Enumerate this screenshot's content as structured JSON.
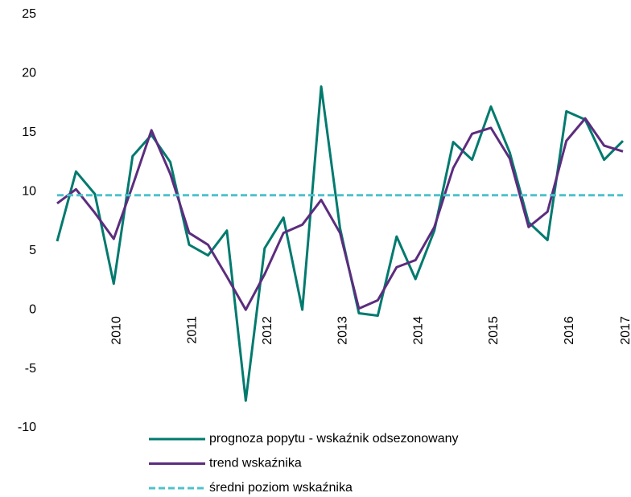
{
  "chart_data": {
    "type": "line",
    "categories": [
      null,
      null,
      null,
      "2010",
      null,
      null,
      null,
      "2011",
      null,
      null,
      null,
      "2012",
      null,
      null,
      null,
      "2013",
      null,
      null,
      null,
      "2014",
      null,
      null,
      null,
      "2015",
      null,
      null,
      null,
      "2016",
      null,
      null,
      "2017"
    ],
    "series": [
      {
        "name": "prognoza popytu - wskaźnik odsezonowany",
        "color": "#007a6e",
        "dash": false,
        "values": [
          5.8,
          11.7,
          9.8,
          2.2,
          13.0,
          14.8,
          12.5,
          5.5,
          4.6,
          6.7,
          -7.7,
          5.2,
          7.8,
          0.0,
          18.9,
          6.9,
          -0.3,
          -0.5,
          6.2,
          2.6,
          6.7,
          14.2,
          12.7,
          17.2,
          13.3,
          7.4,
          5.9,
          16.8,
          16.1,
          12.7,
          14.3
        ]
      },
      {
        "name": "trend wskaźnika",
        "color": "#5c2d7e",
        "dash": false,
        "values": [
          9.0,
          10.2,
          8.2,
          6.0,
          10.5,
          15.2,
          11.5,
          6.5,
          5.5,
          2.8,
          0.0,
          3.0,
          6.5,
          7.2,
          9.3,
          6.5,
          0.1,
          0.8,
          3.6,
          4.2,
          7.0,
          12.0,
          14.9,
          15.4,
          12.8,
          7.0,
          8.3,
          14.3,
          16.2,
          13.9,
          13.4
        ]
      },
      {
        "name": "średni poziom wskaźnika",
        "color": "#4fc1cc",
        "dash": true,
        "values": [
          9.7,
          9.7,
          9.7,
          9.7,
          9.7,
          9.7,
          9.7,
          9.7,
          9.7,
          9.7,
          9.7,
          9.7,
          9.7,
          9.7,
          9.7,
          9.7,
          9.7,
          9.7,
          9.7,
          9.7,
          9.7,
          9.7,
          9.7,
          9.7,
          9.7,
          9.7,
          9.7,
          9.7,
          9.7,
          9.7,
          9.7
        ]
      }
    ],
    "ylim": [
      -10,
      25
    ],
    "yticks": [
      -10,
      -5,
      0,
      5,
      10,
      15,
      20,
      25
    ],
    "grid": false
  }
}
